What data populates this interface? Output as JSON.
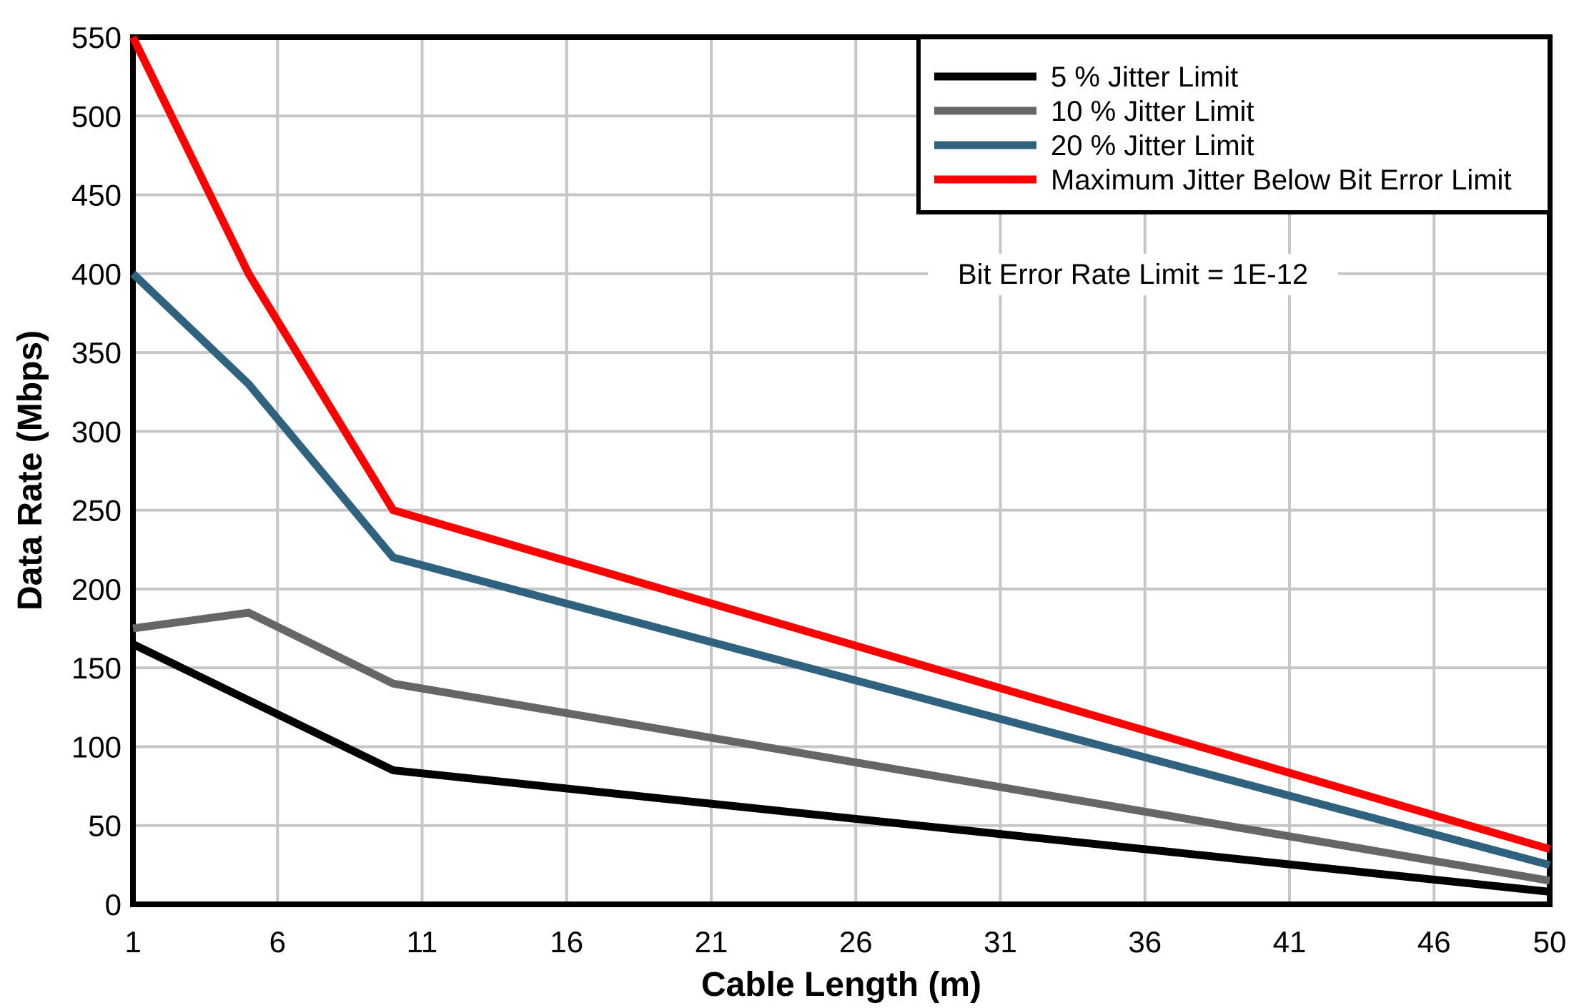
{
  "chart_data": {
    "type": "line",
    "title": "",
    "xlabel": "Cable Length (m)",
    "ylabel": "Data Rate (Mbps)",
    "annotation": "Bit Error Rate Limit = 1E-12",
    "xlim": [
      1,
      50
    ],
    "ylim": [
      0,
      550
    ],
    "xticks": [
      1,
      6,
      11,
      16,
      21,
      26,
      31,
      36,
      41,
      46,
      50
    ],
    "yticks": [
      0,
      50,
      100,
      150,
      200,
      250,
      300,
      350,
      400,
      450,
      500,
      550
    ],
    "grid": true,
    "legend_position": "top-right",
    "colors": {
      "gridline": "#C6C6C6",
      "plot_border": "#000000",
      "background": "#FFFFFF"
    },
    "series": [
      {
        "name": "5 % Jitter Limit",
        "color": "#000000",
        "points": [
          [
            1,
            165
          ],
          [
            10,
            85
          ],
          [
            50,
            8
          ]
        ]
      },
      {
        "name": "10 % Jitter Limit",
        "color": "#666666",
        "points": [
          [
            1,
            175
          ],
          [
            5,
            185
          ],
          [
            10,
            140
          ],
          [
            50,
            15
          ]
        ]
      },
      {
        "name": "20 % Jitter Limit",
        "color": "#2E627F",
        "points": [
          [
            1,
            400
          ],
          [
            5,
            330
          ],
          [
            10,
            220
          ],
          [
            50,
            25
          ]
        ]
      },
      {
        "name": "Maximum Jitter Below Bit Error Limit",
        "color": "#FF0000",
        "points": [
          [
            1,
            550
          ],
          [
            5,
            400
          ],
          [
            10,
            250
          ],
          [
            50,
            35
          ]
        ]
      }
    ]
  }
}
